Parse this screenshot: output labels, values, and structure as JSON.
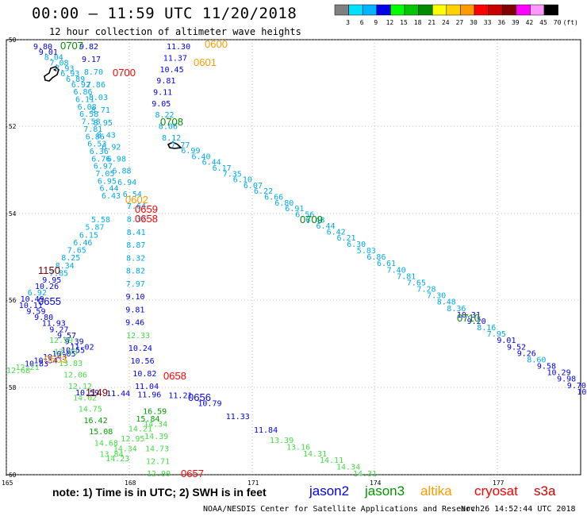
{
  "title": "00:00 – 11:59 UTC 11/20/2018",
  "subtitle": "12 hour collection of altimeter wave heights",
  "legend": {
    "colors": [
      "#808080",
      "#00e0ff",
      "#00b4ff",
      "#0000e6",
      "#00ff00",
      "#00c800",
      "#008c00",
      "#ffff00",
      "#ffd200",
      "#ff9b00",
      "#ff0000",
      "#c80000",
      "#800000",
      "#ff00ff",
      "#ff96ff",
      "#000000"
    ],
    "labels": [
      "3",
      "6",
      "9",
      "12",
      "15",
      "18",
      "21",
      "24",
      "27",
      "30",
      "33",
      "36",
      "39",
      "42",
      "45",
      "70"
    ],
    "unit": "(ft)"
  },
  "axes": {
    "lat_labels": [
      "-50",
      "-52",
      "-54",
      "-56",
      "-58",
      "-60"
    ],
    "lon_labels": [
      "165",
      "168",
      "171",
      "174",
      "177"
    ]
  },
  "note": "note:  1) Time is in UTC;  2) SWH is in feet",
  "satellites": [
    {
      "name": "jason2",
      "color": "#0000e6"
    },
    {
      "name": "jason3",
      "color": "#009600"
    },
    {
      "name": "altika",
      "color": "#ff9b00"
    },
    {
      "name": "cryosat",
      "color": "#ff0000"
    },
    {
      "name": "s3a",
      "color": "#c80000"
    }
  ],
  "credit": "NOAA/NESDIS Center for Satellite Applications and Research",
  "timestamp": "Nov 26 14:52:44 UTC 2018",
  "time_labels": [
    {
      "t": "0707",
      "c": "#008c00"
    },
    {
      "t": "0600",
      "c": "#ff9b00"
    },
    {
      "t": "0601",
      "c": "#ff9b00"
    },
    {
      "t": "0700",
      "c": "#ff0000"
    },
    {
      "t": "0708",
      "c": "#008c00"
    },
    {
      "t": "0602",
      "c": "#ff9b00"
    },
    {
      "t": "0659",
      "c": "#ff0000"
    },
    {
      "t": "0658",
      "c": "#ff0000"
    },
    {
      "t": "0709",
      "c": "#008c00"
    },
    {
      "t": "1150",
      "c": "#800000"
    },
    {
      "t": "0655",
      "c": "#0000e6"
    },
    {
      "t": "0710",
      "c": "#008c00"
    },
    {
      "t": "0603",
      "c": "#ff9b00"
    },
    {
      "t": "0658",
      "c": "#ff0000"
    },
    {
      "t": "1149",
      "c": "#800000"
    },
    {
      "t": "0656",
      "c": "#0000e6"
    },
    {
      "t": "0657",
      "c": "#ff0000"
    }
  ],
  "tracks": {
    "jason3_a": [
      "9.80",
      "9.01",
      "8.04",
      "7.08",
      "7.93",
      "6.93",
      "6.89",
      "6.92",
      "6.86",
      "6.11",
      "6.08",
      "6.58",
      "7.58",
      "7.81",
      "6.86",
      "6.53",
      "6.36",
      "6.76",
      "6.97",
      "7.05",
      "6.95",
      "6.44",
      "6.43"
    ],
    "altika_a": [
      "11.30",
      "11.37",
      "10.45",
      "9.81",
      "9.11",
      "9.05",
      "8.22",
      "8.06",
      "8.12",
      "7.77",
      "6.99",
      "6.40",
      "6.44",
      "6.17",
      "7.35",
      "6.10",
      "6.07",
      "6.22",
      "6.66",
      "6.80",
      "6.91",
      "6.56",
      "6.48",
      "6.44",
      "6.42",
      "6.21",
      "6.30",
      "5.83",
      "6.86",
      "6.61",
      "7.40",
      "7.81",
      "7.65",
      "7.28",
      "7.30",
      "8.48",
      "8.36",
      "10.31",
      "9.20",
      "8.16",
      "7.95",
      "9.01",
      "9.52",
      "9.26",
      "8.60",
      "9.58",
      "10.29",
      "9.98",
      "9.70",
      "10.28",
      "10.0"
    ],
    "west_a": [
      "9.82",
      "9.17",
      "8.70",
      "7.86",
      "8.03",
      "8.71",
      "8.95",
      "8.43",
      "6.92",
      "6.98",
      "6.88",
      "6.94",
      "6.54",
      "7.64",
      "8.32",
      "8.41",
      "8.87",
      "8.32",
      "8.82",
      "7.97",
      "9.10",
      "9.81",
      "9.46",
      "12.33",
      "10.24",
      "10.56",
      "10.82",
      "11.04"
    ],
    "west_b": [
      "5.58",
      "5.87",
      "6.15",
      "6.46",
      "7.65",
      "8.25",
      "8.34",
      "7.85",
      "9.95",
      "10.26",
      "6.92",
      "10.49",
      "10.11",
      "9.59",
      "9.80",
      "11.93",
      "9.27",
      "9.57",
      "9.39",
      "11.02",
      "10.55",
      "10.05",
      "10.43",
      "10.34",
      "10.83",
      "12.21",
      "12.68"
    ],
    "green_a": [
      "12.59",
      "13.03",
      "13.83",
      "12.06",
      "12.12",
      "14.02",
      "14.75",
      "16.42",
      "15.08",
      "14.68",
      "13.84",
      "14.23",
      "14.34",
      "12.95",
      "14.21",
      "15.84",
      "16.59",
      "14.34",
      "14.39",
      "14.73",
      "12.71",
      "12.99"
    ],
    "blue_b": [
      "10.59",
      "11.44",
      "11.96",
      "11.21",
      "10.79",
      "11.33",
      "11.84"
    ],
    "green_b": [
      "13.39",
      "13.16",
      "14.31",
      "14.11",
      "14.34",
      "14.31"
    ]
  }
}
